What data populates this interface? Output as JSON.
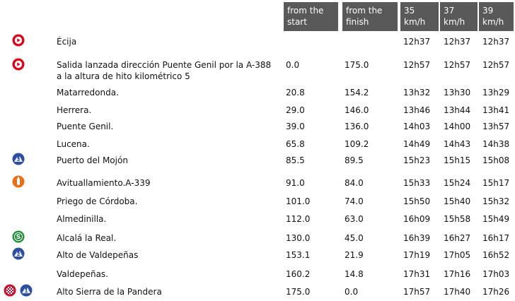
{
  "header": {
    "from_start": [
      "from the",
      "start"
    ],
    "from_finish": [
      "from the",
      "finish"
    ],
    "speed35": [
      "35",
      "km/h"
    ],
    "speed37": [
      "37",
      "km/h"
    ],
    "speed39": [
      "39",
      "km/h"
    ]
  },
  "colors": {
    "header_bg": "#595959",
    "start_icon": "#d8001b",
    "climb_icon": "#2e4fa0",
    "feed_icon": "#e8701a",
    "sprint_icon": "#1f8f3a",
    "finish_icon": "#c8102e"
  },
  "rows": [
    {
      "location": "Écija",
      "start": "",
      "finish": "",
      "t35": "12h37",
      "t37": "12h37",
      "t39": "12h37",
      "icons": [
        "start-icon"
      ]
    },
    {
      "location": "Salida lanzada dirección Puente Genil por la A-388 a la altura de hito kilométrico 5",
      "start": "0.0",
      "finish": "175.0",
      "t35": "12h57",
      "t37": "12h57",
      "t39": "12h57",
      "icons": [
        "start-icon"
      ]
    },
    {
      "location": "Matarredonda.",
      "start": "20.8",
      "finish": "154.2",
      "t35": "13h32",
      "t37": "13h30",
      "t39": "13h29",
      "icons": []
    },
    {
      "location": "Herrera.",
      "start": "29.0",
      "finish": "146.0",
      "t35": "13h46",
      "t37": "13h44",
      "t39": "13h41",
      "icons": []
    },
    {
      "location": "Puente Genil.",
      "start": "39.0",
      "finish": "136.0",
      "t35": "14h03",
      "t37": "14h00",
      "t39": "13h57",
      "icons": []
    },
    {
      "location": "Lucena.",
      "start": "65.8",
      "finish": "109.2",
      "t35": "14h49",
      "t37": "14h43",
      "t39": "14h38",
      "icons": []
    },
    {
      "location": "Puerto del Mojón",
      "start": "85.5",
      "finish": "89.5",
      "t35": "15h23",
      "t37": "15h15",
      "t39": "15h08",
      "icons": [
        "climb-3-icon"
      ]
    },
    {
      "location": "Avituallamiento.A-339",
      "start": "91.0",
      "finish": "84.0",
      "t35": "15h33",
      "t37": "15h24",
      "t39": "15h17",
      "icons": [
        "feed-zone-icon"
      ]
    },
    {
      "location": "Priego de Córdoba.",
      "start": "101.0",
      "finish": "74.0",
      "t35": "15h50",
      "t37": "15h40",
      "t39": "15h32",
      "icons": []
    },
    {
      "location": "Almedinilla.",
      "start": "112.0",
      "finish": "63.0",
      "t35": "16h09",
      "t37": "15h58",
      "t39": "15h49",
      "icons": []
    },
    {
      "location": "Alcalá la Real.",
      "start": "130.0",
      "finish": "45.0",
      "t35": "16h39",
      "t37": "16h27",
      "t39": "16h17",
      "icons": [
        "sprint-icon"
      ]
    },
    {
      "location": "Alto de Valdepeñas",
      "start": "153.1",
      "finish": "21.9",
      "t35": "17h19",
      "t37": "17h05",
      "t39": "16h52",
      "icons": [
        "climb-2-icon"
      ]
    },
    {
      "location": "Valdepeñas.",
      "start": "160.2",
      "finish": "14.8",
      "t35": "17h31",
      "t37": "17h16",
      "t39": "17h03",
      "icons": []
    },
    {
      "location": "Alto Sierra de la Pandera",
      "start": "175.0",
      "finish": "0.0",
      "t35": "17h57",
      "t37": "17h40",
      "t39": "17h26",
      "icons": [
        "finish-flag-icon",
        "climb-1-icon"
      ]
    }
  ]
}
